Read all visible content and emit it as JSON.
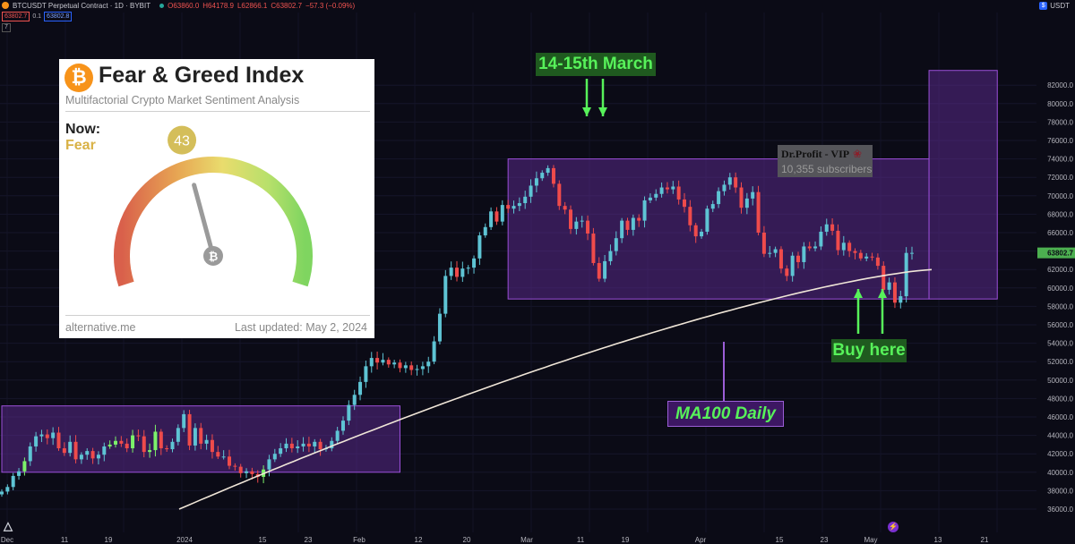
{
  "header": {
    "symbol": "BTCUSDT Perpetual Contract · 1D · BYBIT",
    "open": "O63860.0",
    "high": "H64178.9",
    "low": "L62866.1",
    "close": "C63802.7",
    "change": "−57.3 (−0.09%)",
    "bid": "63802.7",
    "spread": "0.1",
    "ask": "63802.8",
    "indicator_toggle": "7",
    "currency": "USDT"
  },
  "chart_data": {
    "type": "candlestick",
    "price_axis_ticks": [
      "36000.0",
      "38000.0",
      "40000.0",
      "42000.0",
      "44000.0",
      "46000.0",
      "48000.0",
      "50000.0",
      "52000.0",
      "54000.0",
      "56000.0",
      "58000.0",
      "60000.0",
      "62000.0",
      "64000.0",
      "66000.0",
      "68000.0",
      "70000.0",
      "72000.0",
      "74000.0",
      "76000.0",
      "78000.0",
      "80000.0",
      "82000.0"
    ],
    "time_axis_ticks": [
      "Dec",
      "11",
      "19",
      "2024",
      "15",
      "23",
      "Feb",
      "12",
      "20",
      "Mar",
      "11",
      "19",
      "Apr",
      "15",
      "23",
      "May",
      "13",
      "21"
    ],
    "last_price": "63802.7",
    "colors": {
      "up": "#5ec4d4",
      "down": "#ef4b4b",
      "up_alt": "#7cf26a",
      "box_fill": "#5a2a8a",
      "box_edge": "#9b4fd8",
      "ma": "#f0e6d8"
    },
    "candles_close": [
      37900,
      38400,
      39600,
      40100,
      41200,
      42800,
      43900,
      44100,
      43700,
      44300,
      42600,
      42100,
      43300,
      41400,
      41900,
      42300,
      41500,
      41900,
      42800,
      43000,
      43400,
      43100,
      42600,
      44000,
      43900,
      42200,
      42400,
      44400,
      42600,
      42500,
      43300,
      44800,
      46300,
      42900,
      44800,
      43100,
      43500,
      42200,
      41700,
      41700,
      40700,
      40600,
      39900,
      40100,
      39800,
      39500,
      40300,
      41400,
      42000,
      42600,
      43100,
      42600,
      42800,
      43100,
      42800,
      43300,
      42500,
      42600,
      43400,
      44500,
      45600,
      47300,
      48400,
      49800,
      51500,
      52400,
      51900,
      52200,
      51700,
      51900,
      51300,
      51600,
      51100,
      51200,
      51500,
      52000,
      54200,
      57200,
      61300,
      62200,
      61200,
      62100,
      62200,
      63200,
      65700,
      66600,
      68300,
      67200,
      69000,
      68600,
      68900,
      69200,
      69900,
      71100,
      71900,
      72500,
      73000,
      71300,
      68900,
      68500,
      66400,
      67200,
      67300,
      65900,
      62700,
      61000,
      62900,
      64000,
      65400,
      67300,
      66300,
      67600,
      67300,
      69500,
      69800,
      70200,
      70900,
      70700,
      71000,
      69600,
      68800,
      66800,
      65600,
      66100,
      68600,
      69100,
      70500,
      71200,
      72000,
      70900,
      68700,
      69700,
      70400,
      66000,
      63700,
      63800,
      64200,
      62100,
      61300,
      63500,
      62800,
      64500,
      64300,
      64500,
      66100,
      66900,
      66200,
      64100,
      64900,
      64000,
      63800,
      63200,
      63400,
      63300,
      62400,
      59800,
      60600,
      58400,
      59100,
      63800,
      63803
    ],
    "boxes": [
      {
        "from": "2023-12-01",
        "to": "2024-02-09",
        "low": 40000,
        "high": 47200
      },
      {
        "from": "2024-02-28",
        "to": "2024-05-12",
        "low": 58800,
        "high": 74000
      },
      {
        "from": "2024-05-12",
        "to": "2024-05-24",
        "low": 58800,
        "high": 83600
      }
    ],
    "ma100": {
      "label": "MA100 Daily",
      "start": 36000,
      "end": 62000
    }
  },
  "labels": {
    "march": "14-15th March",
    "buy": "Buy here",
    "ma": "MA100 Daily"
  },
  "watermark": {
    "name": "Dr.Profit - VIP",
    "subscribers": "10,355 subscribers"
  },
  "fear_greed": {
    "title": "Fear & Greed Index",
    "subtitle": "Multifactorial Crypto Market Sentiment Analysis",
    "now_label": "Now:",
    "classification": "Fear",
    "value": 43,
    "value_text": "43",
    "source": "alternative.me",
    "updated": "Last updated: May 2, 2024",
    "badge_color": "#d4be5a",
    "classification_color": "#d9b246"
  }
}
